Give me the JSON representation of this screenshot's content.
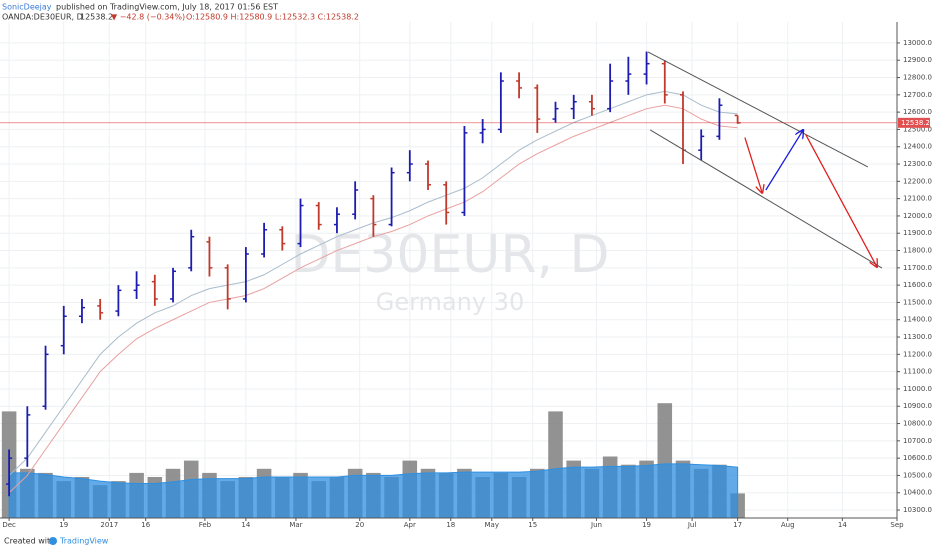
{
  "chart_data": {
    "type": "ohlc",
    "header": {
      "author": "SonicDeejay",
      "published": "published on TradingView.com, July 18, 2017 01:56 EST",
      "symbol": "OANDA:DE30EUR, D",
      "last": "12538.2",
      "change": "▼ −42.8 (−0.34%)",
      "ohlc_text": "O:12580.9 H:12580.9 L:12532.3 C:12538.2"
    },
    "watermark": "DE30EUR, D",
    "watermark_sub": "Germany 30",
    "footer": {
      "created": "Created with",
      "brand": "TradingView"
    },
    "up_color": "#1c1cb0",
    "down_color": "#c0392b",
    "grid": true,
    "xlim": [
      -1,
      196
    ],
    "ylim": [
      10254,
      13121
    ],
    "xticks": [
      {
        "value": 1,
        "label": "Dec"
      },
      {
        "value": 13,
        "label": "19"
      },
      {
        "value": 23,
        "label": "2017"
      },
      {
        "value": 31,
        "label": "16"
      },
      {
        "value": 44,
        "label": "Feb"
      },
      {
        "value": 53,
        "label": "14"
      },
      {
        "value": 64,
        "label": "Mar"
      },
      {
        "value": 78,
        "label": "20"
      },
      {
        "value": 89,
        "label": "Apr"
      },
      {
        "value": 98,
        "label": "18"
      },
      {
        "value": 107,
        "label": "May"
      },
      {
        "value": 116,
        "label": "15"
      },
      {
        "value": 130,
        "label": "Jun"
      },
      {
        "value": 141,
        "label": "19"
      },
      {
        "value": 151,
        "label": "Jul"
      },
      {
        "value": 161,
        "label": "17"
      },
      {
        "value": 172,
        "label": "Aug"
      },
      {
        "value": 184,
        "label": "14"
      },
      {
        "value": 196,
        "label": "Sep"
      }
    ],
    "yticks": [
      {
        "value": 10300,
        "label": "10300.0"
      },
      {
        "value": 10400,
        "label": "10400.0"
      },
      {
        "value": 10500,
        "label": "10500.0"
      },
      {
        "value": 10600,
        "label": "10600.0"
      },
      {
        "value": 10700,
        "label": "10700.0"
      },
      {
        "value": 10800,
        "label": "10800.0"
      },
      {
        "value": 10900,
        "label": "10900.0"
      },
      {
        "value": 11000,
        "label": "11000.0"
      },
      {
        "value": 11100,
        "label": "11100.0"
      },
      {
        "value": 11200,
        "label": "11200.0"
      },
      {
        "value": 11300,
        "label": "11300.0"
      },
      {
        "value": 11400,
        "label": "11400.0"
      },
      {
        "value": 11500,
        "label": "11500.0"
      },
      {
        "value": 11600,
        "label": "11600.0"
      },
      {
        "value": 11700,
        "label": "11700.0"
      },
      {
        "value": 11800,
        "label": "11800.0"
      },
      {
        "value": 11900,
        "label": "11900.0"
      },
      {
        "value": 12000,
        "label": "12000.0"
      },
      {
        "value": 12100,
        "label": "12100.0"
      },
      {
        "value": 12200,
        "label": "12200.0"
      },
      {
        "value": 12300,
        "label": "12300.0"
      },
      {
        "value": 12400,
        "label": "12400.0"
      },
      {
        "value": 12500,
        "label": "12500.0"
      },
      {
        "value": 12600,
        "label": "12600.0"
      },
      {
        "value": 12700,
        "label": "12700.0"
      },
      {
        "value": 12800,
        "label": "12800.0"
      },
      {
        "value": 12900,
        "label": "12900.0"
      },
      {
        "value": 13000,
        "label": "13000.0"
      }
    ],
    "x": [
      1,
      5,
      9,
      13,
      17,
      21,
      25,
      29,
      33,
      37,
      41,
      45,
      49,
      53,
      57,
      61,
      65,
      69,
      73,
      77,
      81,
      85,
      89,
      93,
      97,
      101,
      105,
      109,
      113,
      117,
      121,
      125,
      129,
      133,
      137,
      141,
      145,
      149,
      153,
      157,
      161
    ],
    "open": [
      10450,
      10600,
      10900,
      11250,
      11420,
      11480,
      11450,
      11570,
      11620,
      11520,
      11700,
      11850,
      11700,
      11520,
      11780,
      11920,
      11840,
      12060,
      11950,
      12010,
      12100,
      11950,
      12250,
      12300,
      12180,
      12020,
      12480,
      12500,
      12780,
      12740,
      12560,
      12620,
      12660,
      12620,
      12780,
      12820,
      12880,
      12700,
      12380,
      12460,
      12580.9
    ],
    "high": [
      10650,
      10900,
      11250,
      11480,
      11520,
      11520,
      11600,
      11680,
      11660,
      11700,
      11920,
      11880,
      11720,
      11820,
      11960,
      11940,
      12100,
      12080,
      12050,
      12200,
      12120,
      12280,
      12380,
      12320,
      12200,
      12520,
      12560,
      12830,
      12830,
      12760,
      12660,
      12700,
      12700,
      12880,
      12920,
      12950,
      12900,
      12720,
      12500,
      12680,
      12580.9
    ],
    "low": [
      10380,
      10550,
      10880,
      11200,
      11380,
      11400,
      11420,
      11520,
      11480,
      11500,
      11680,
      11650,
      11460,
      11500,
      11760,
      11800,
      11820,
      11920,
      11900,
      11980,
      11880,
      11940,
      12200,
      12150,
      11950,
      12000,
      12420,
      12480,
      12680,
      12480,
      12540,
      12560,
      12580,
      12600,
      12700,
      12760,
      12650,
      12300,
      12320,
      12440,
      12532.3
    ],
    "close": [
      10600,
      10850,
      11200,
      11420,
      11470,
      11440,
      11570,
      11600,
      11520,
      11680,
      11880,
      11700,
      11520,
      11780,
      11920,
      11840,
      12060,
      11950,
      12010,
      12150,
      11950,
      12250,
      12300,
      12180,
      12020,
      12480,
      12500,
      12780,
      12740,
      12560,
      12620,
      12660,
      12620,
      12780,
      12820,
      12880,
      12700,
      12380,
      12460,
      12640,
      12538.2
    ],
    "lines": [
      {
        "color": "#a9bccb",
        "values": [
          10500,
          10600,
          10750,
          10900,
          11050,
          11200,
          11300,
          11380,
          11440,
          11480,
          11540,
          11580,
          11600,
          11620,
          11660,
          11720,
          11780,
          11830,
          11880,
          11920,
          11960,
          11990,
          12030,
          12080,
          12120,
          12160,
          12220,
          12300,
          12380,
          12440,
          12490,
          12540,
          12580,
          12620,
          12660,
          12700,
          12720,
          12700,
          12640,
          12600,
          12590
        ]
      },
      {
        "color": "#e8a0a0",
        "values": [
          10400,
          10500,
          10650,
          10800,
          10950,
          11100,
          11200,
          11290,
          11350,
          11400,
          11450,
          11500,
          11520,
          11540,
          11580,
          11640,
          11700,
          11750,
          11800,
          11840,
          11880,
          11910,
          11950,
          12000,
          12040,
          12080,
          12140,
          12220,
          12300,
          12360,
          12410,
          12460,
          12500,
          12540,
          12580,
          12620,
          12640,
          12620,
          12560,
          12520,
          12510
        ]
      }
    ],
    "volume": {
      "vlim": [
        0,
        150
      ],
      "bar_color": "#7f7f7f",
      "ma_color": "#2f8fe0",
      "values": [
        130,
        60,
        55,
        45,
        50,
        40,
        45,
        55,
        50,
        60,
        70,
        55,
        45,
        50,
        60,
        50,
        55,
        45,
        50,
        60,
        55,
        50,
        70,
        60,
        55,
        60,
        50,
        55,
        50,
        60,
        130,
        70,
        60,
        75,
        65,
        70,
        140,
        70,
        60,
        65,
        30
      ],
      "ma": [
        55,
        55,
        53,
        50,
        48,
        45,
        43,
        42,
        42,
        44,
        47,
        48,
        48,
        48,
        50,
        50,
        50,
        50,
        50,
        52,
        52,
        52,
        54,
        55,
        55,
        56,
        56,
        56,
        56,
        57,
        60,
        62,
        62,
        63,
        63,
        64,
        66,
        66,
        65,
        64,
        62
      ]
    },
    "price_line": {
      "value": 12538.2,
      "color": "#e05050"
    },
    "drawings": [
      {
        "color": "#555555",
        "arrow": false,
        "x": [
          141.3,
          189.6
        ],
        "y": [
          12948,
          12283
        ]
      },
      {
        "color": "#555555",
        "arrow": false,
        "x": [
          141.8,
          192.7
        ],
        "y": [
          12497,
          11699
        ]
      },
      {
        "color": "#e02020",
        "arrow": true,
        "x": [
          162.6,
          166.4
        ],
        "y": [
          12453,
          12133
        ]
      },
      {
        "color": "#1a1ae0",
        "arrow": true,
        "x": [
          167.2,
          175.4
        ],
        "y": [
          12150,
          12497
        ]
      },
      {
        "color": "#e02020",
        "arrow": true,
        "x": [
          176,
          191.6
        ],
        "y": [
          12468,
          11705
        ]
      }
    ]
  }
}
